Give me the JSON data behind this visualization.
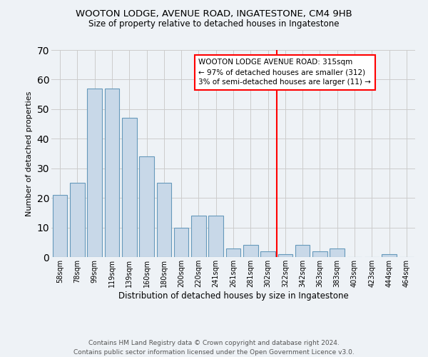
{
  "title": "WOOTON LODGE, AVENUE ROAD, INGATESTONE, CM4 9HB",
  "subtitle": "Size of property relative to detached houses in Ingatestone",
  "xlabel": "Distribution of detached houses by size in Ingatestone",
  "ylabel": "Number of detached properties",
  "footer_line1": "Contains HM Land Registry data © Crown copyright and database right 2024.",
  "footer_line2": "Contains public sector information licensed under the Open Government Licence v3.0.",
  "categories": [
    "58sqm",
    "78sqm",
    "99sqm",
    "119sqm",
    "139sqm",
    "160sqm",
    "180sqm",
    "200sqm",
    "220sqm",
    "241sqm",
    "261sqm",
    "281sqm",
    "302sqm",
    "322sqm",
    "342sqm",
    "363sqm",
    "383sqm",
    "403sqm",
    "423sqm",
    "444sqm",
    "464sqm"
  ],
  "values": [
    21,
    25,
    57,
    57,
    47,
    34,
    25,
    10,
    14,
    14,
    3,
    4,
    2,
    1,
    4,
    2,
    3,
    0,
    0,
    1,
    0
  ],
  "bar_color": "#c8d8e8",
  "bar_edge_color": "#6699bb",
  "vline_index": 13,
  "vline_color": "red",
  "annotation_text": "WOOTON LODGE AVENUE ROAD: 315sqm\n← 97% of detached houses are smaller (312)\n3% of semi-detached houses are larger (11) →",
  "annotation_box_color": "white",
  "annotation_box_edge_color": "red",
  "ylim": [
    0,
    70
  ],
  "yticks": [
    0,
    10,
    20,
    30,
    40,
    50,
    60,
    70
  ],
  "grid_color": "#cccccc",
  "background_color": "#eef2f6",
  "title_fontsize": 9.5,
  "subtitle_fontsize": 8.5,
  "ylabel_fontsize": 8,
  "xlabel_fontsize": 8.5,
  "tick_fontsize": 7,
  "footer_fontsize": 6.5,
  "annotation_fontsize": 7.5
}
